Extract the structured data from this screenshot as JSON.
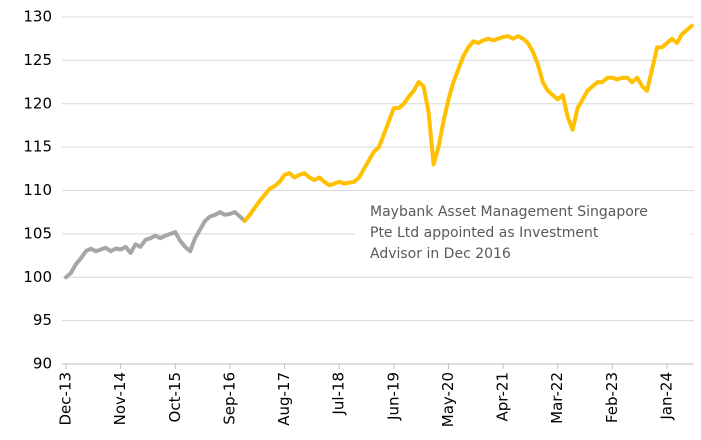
{
  "chart_data": {
    "type": "line",
    "categories": [
      "Dec-13",
      null,
      null,
      null,
      null,
      null,
      null,
      null,
      null,
      null,
      null,
      "Nov-14",
      null,
      null,
      null,
      null,
      null,
      null,
      null,
      null,
      null,
      null,
      "Oct-15",
      null,
      null,
      null,
      null,
      null,
      null,
      null,
      null,
      null,
      null,
      "Sep-16",
      null,
      null,
      null,
      null,
      null,
      null,
      null,
      null,
      null,
      null,
      "Aug-17",
      null,
      null,
      null,
      null,
      null,
      null,
      null,
      null,
      null,
      null,
      "Jul-18",
      null,
      null,
      null,
      null,
      null,
      null,
      null,
      null,
      null,
      null,
      "Jun-19",
      null,
      null,
      null,
      null,
      null,
      null,
      null,
      null,
      null,
      null,
      "May-20",
      null,
      null,
      null,
      null,
      null,
      null,
      null,
      null,
      null,
      null,
      "Apr-21",
      null,
      null,
      null,
      null,
      null,
      null,
      null,
      null,
      null,
      null,
      "Mar-22",
      null,
      null,
      null,
      null,
      null,
      null,
      null,
      null,
      null,
      null,
      "Feb-23",
      null,
      null,
      null,
      null,
      null,
      null,
      null,
      null,
      null,
      null,
      "Jan-24",
      null,
      null,
      null,
      null,
      null
    ],
    "series": [
      {
        "color": "#a6a6a6",
        "values": [
          100,
          100.5,
          101.5,
          102.2,
          103,
          103.3,
          103,
          103.2,
          103.4,
          103,
          103.3,
          103.2,
          103.5,
          102.8,
          103.8,
          103.5,
          104.3,
          104.5,
          104.8,
          104.5,
          104.8,
          105,
          105.2,
          104.2,
          103.5,
          103,
          104.5,
          105.5,
          106.5,
          107,
          107.2,
          107.5,
          107.2,
          107.3,
          107.5,
          107,
          106.5,
          null,
          null,
          null,
          null,
          null,
          null,
          null,
          null,
          null,
          null,
          null,
          null,
          null,
          null,
          null,
          null,
          null,
          null,
          null,
          null,
          null,
          null,
          null,
          null,
          null,
          null,
          null,
          null,
          null,
          null,
          null,
          null,
          null,
          null,
          null,
          null,
          null,
          null,
          null,
          null,
          null,
          null,
          null,
          null,
          null,
          null,
          null,
          null,
          null,
          null,
          null,
          null,
          null,
          null,
          null,
          null,
          null,
          null,
          null,
          null,
          null,
          null,
          null,
          null,
          null,
          null,
          null,
          null,
          null,
          null,
          null,
          null,
          null,
          null,
          null,
          null,
          null,
          null,
          null,
          null,
          null,
          null,
          null,
          null,
          null,
          null,
          null,
          null,
          null,
          null
        ]
      },
      {
        "color": "#ffc000",
        "values": [
          null,
          null,
          null,
          null,
          null,
          null,
          null,
          null,
          null,
          null,
          null,
          null,
          null,
          null,
          null,
          null,
          null,
          null,
          null,
          null,
          null,
          null,
          null,
          null,
          null,
          null,
          null,
          null,
          null,
          null,
          null,
          null,
          null,
          null,
          null,
          null,
          106.5,
          107.2,
          108,
          108.8,
          109.5,
          110.2,
          110.5,
          111,
          111.8,
          112,
          111.5,
          111.8,
          112,
          111.5,
          111.2,
          111.5,
          111,
          110.6,
          110.8,
          111,
          110.8,
          110.9,
          111,
          111.5,
          112.5,
          113.5,
          114.5,
          115,
          116.5,
          118,
          119.5,
          119.5,
          120,
          120.8,
          121.5,
          122.5,
          122,
          119,
          113,
          115,
          118,
          120.5,
          122.5,
          124,
          125.5,
          126.5,
          127.2,
          127,
          127.3,
          127.5,
          127.3,
          127.5,
          127.7,
          127.8,
          127.5,
          127.8,
          127.5,
          127,
          126,
          124.5,
          122.5,
          121.5,
          121,
          120.5,
          121,
          118.5,
          117,
          119.5,
          120.5,
          121.5,
          122,
          122.5,
          122.5,
          123,
          123,
          122.8,
          123,
          123,
          122.5,
          123,
          122,
          121.5,
          124,
          126.5,
          126.5,
          127,
          127.5,
          127,
          128,
          128.5,
          129
        ]
      }
    ],
    "ylim": [
      90,
      130
    ],
    "yticks": [
      90,
      95,
      100,
      105,
      110,
      115,
      120,
      125,
      130
    ],
    "grid": true,
    "annotation": [
      "Maybank Asset Management Singapore",
      "Pte Ltd appointed as Investment",
      "Advisor in Dec 2016"
    ]
  }
}
